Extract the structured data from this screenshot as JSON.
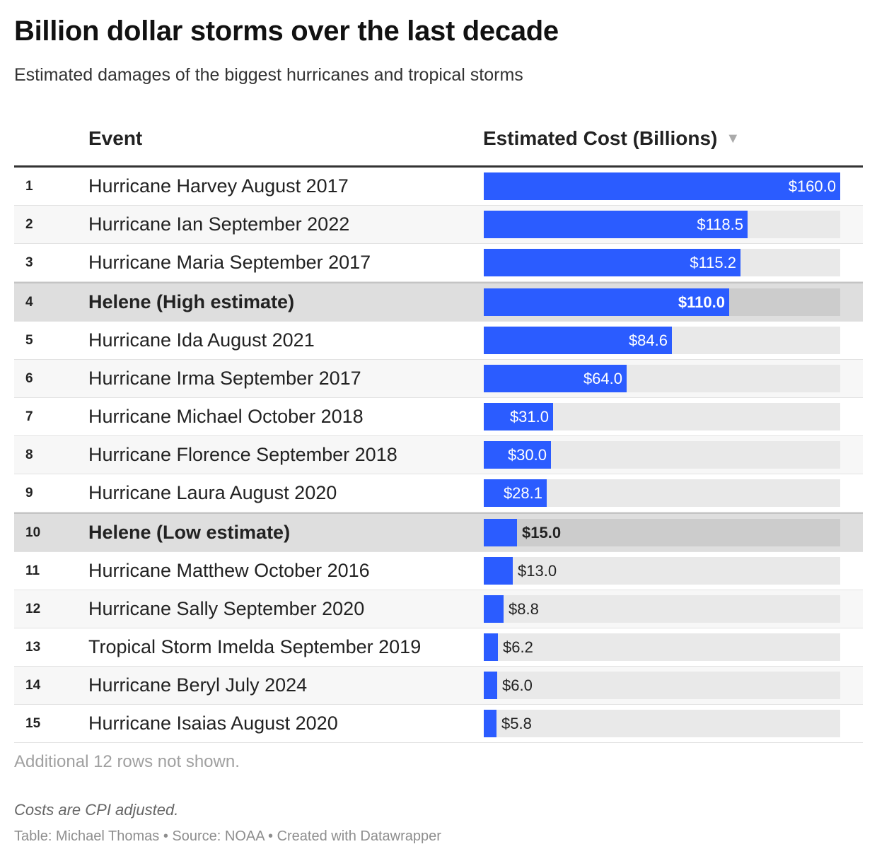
{
  "header": {
    "title": "Billion dollar storms over the last decade",
    "subtitle": "Estimated damages of the biggest hurricanes and tropical storms"
  },
  "columns": {
    "event": "Event",
    "cost": "Estimated Cost (Billions)",
    "sort_icon": "▼"
  },
  "chart_data": {
    "type": "bar",
    "orientation": "horizontal",
    "title": "Billion dollar storms over the last decade",
    "subtitle": "Estimated damages of the biggest hurricanes and tropical storms",
    "xlim": [
      0,
      160
    ],
    "value_prefix": "$",
    "bar_color": "#2b5cff",
    "highlight_rows": [
      4,
      10
    ],
    "rows": [
      {
        "rank": "1",
        "event": "Hurricane Harvey August 2017",
        "value": 160.0,
        "label": "$160.0"
      },
      {
        "rank": "2",
        "event": "Hurricane Ian September 2022",
        "value": 118.5,
        "label": "$118.5"
      },
      {
        "rank": "3",
        "event": "Hurricane Maria September 2017",
        "value": 115.2,
        "label": "$115.2"
      },
      {
        "rank": "4",
        "event": "Helene (High estimate)",
        "value": 110.0,
        "label": "$110.0"
      },
      {
        "rank": "5",
        "event": "Hurricane Ida August 2021",
        "value": 84.6,
        "label": "$84.6"
      },
      {
        "rank": "6",
        "event": "Hurricane Irma September 2017",
        "value": 64.0,
        "label": "$64.0"
      },
      {
        "rank": "7",
        "event": "Hurricane Michael October 2018",
        "value": 31.0,
        "label": "$31.0"
      },
      {
        "rank": "8",
        "event": "Hurricane Florence September 2018",
        "value": 30.0,
        "label": "$30.0"
      },
      {
        "rank": "9",
        "event": "Hurricane Laura August 2020",
        "value": 28.1,
        "label": "$28.1"
      },
      {
        "rank": "10",
        "event": "Helene (Low estimate)",
        "value": 15.0,
        "label": "$15.0"
      },
      {
        "rank": "11",
        "event": "Hurricane Matthew October 2016",
        "value": 13.0,
        "label": "$13.0"
      },
      {
        "rank": "12",
        "event": "Hurricane Sally September 2020",
        "value": 8.8,
        "label": "$8.8"
      },
      {
        "rank": "13",
        "event": "Tropical Storm Imelda September 2019",
        "value": 6.2,
        "label": "$6.2"
      },
      {
        "rank": "14",
        "event": "Hurricane Beryl July 2024",
        "value": 6.0,
        "label": "$6.0"
      },
      {
        "rank": "15",
        "event": "Hurricane Isaias August 2020",
        "value": 5.8,
        "label": "$5.8"
      }
    ]
  },
  "footer": {
    "more_rows": "Additional 12 rows not shown.",
    "note": "Costs are CPI adjusted.",
    "source": "Table: Michael Thomas • Source: NOAA • Created with Datawrapper"
  }
}
